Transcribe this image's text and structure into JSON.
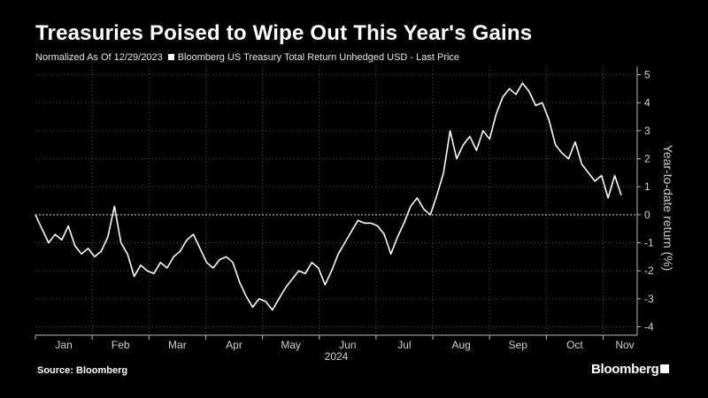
{
  "chart_data": {
    "type": "line",
    "title": "Treasuries Poised to Wipe Out This Year's Gains",
    "subtitle": "Normalized As Of 12/29/2023",
    "legend": [
      "Bloomberg US Treasury Total Return Unhedged USD - Last Price"
    ],
    "ylabel": "Year-to-date return (%)",
    "year_label": "2024",
    "x_tick_labels": [
      "Jan",
      "Feb",
      "Mar",
      "Apr",
      "May",
      "Jun",
      "Jul",
      "Aug",
      "Sep",
      "Oct",
      "Nov"
    ],
    "y_ticks": [
      5,
      4,
      3,
      2,
      1,
      0,
      -1,
      -2,
      -3,
      -4
    ],
    "y_tick_labels": [
      "5",
      "4",
      "3",
      "2",
      "1",
      "0",
      "-1",
      "-2",
      "-3",
      "-4"
    ],
    "ylim": [
      -4.3,
      5.3
    ],
    "grid": true,
    "series": [
      {
        "name": "Bloomberg US Treasury Total Return Unhedged USD - Last Price",
        "color": "#ffffff",
        "values": [
          0.0,
          -0.5,
          -1.0,
          -0.7,
          -0.9,
          -0.4,
          -1.1,
          -1.4,
          -1.2,
          -1.5,
          -1.3,
          -0.8,
          0.3,
          -1.0,
          -1.4,
          -2.2,
          -1.8,
          -2.0,
          -2.1,
          -1.7,
          -1.9,
          -1.5,
          -1.3,
          -0.9,
          -0.7,
          -1.2,
          -1.7,
          -1.9,
          -1.6,
          -1.5,
          -1.7,
          -2.4,
          -2.9,
          -3.3,
          -3.0,
          -3.1,
          -3.4,
          -3.0,
          -2.6,
          -2.3,
          -2.0,
          -2.1,
          -1.7,
          -1.9,
          -2.5,
          -2.0,
          -1.4,
          -1.0,
          -0.6,
          -0.2,
          -0.3,
          -0.3,
          -0.4,
          -0.7,
          -1.4,
          -0.8,
          -0.3,
          0.3,
          0.6,
          0.2,
          0.0,
          0.7,
          1.5,
          3.0,
          2.0,
          2.5,
          2.8,
          2.3,
          3.0,
          2.7,
          3.6,
          4.2,
          4.5,
          4.3,
          4.7,
          4.4,
          3.9,
          4.0,
          3.4,
          2.5,
          2.2,
          2.0,
          2.6,
          1.8,
          1.5,
          1.2,
          1.4,
          0.6,
          1.4,
          0.7
        ]
      }
    ]
  },
  "footer": {
    "source": "Source: Bloomberg",
    "brand": "Bloomberg"
  }
}
